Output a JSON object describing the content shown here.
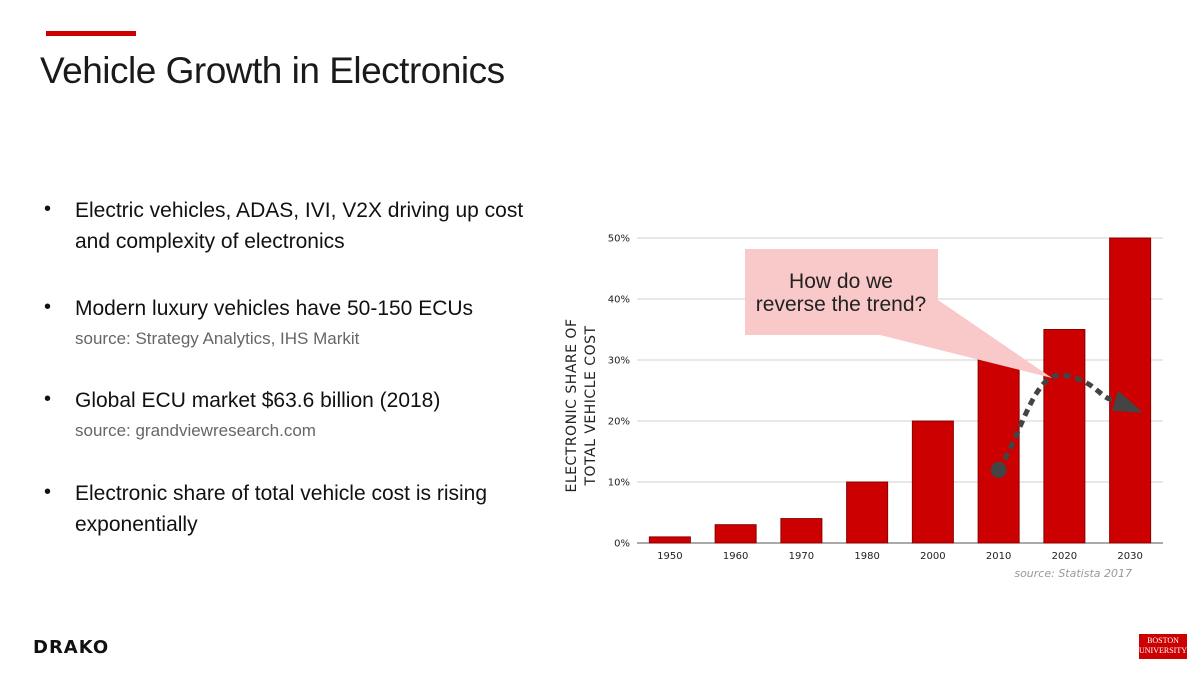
{
  "slide": {
    "title": "Vehicle Growth in Electronics",
    "bullets": [
      {
        "text": "Electric vehicles, ADAS, IVI, V2X driving up cost and complexity of electronics",
        "source": ""
      },
      {
        "text": "Modern luxury vehicles have 50-150 ECUs",
        "source": "source: Strategy Analytics, IHS Markit"
      },
      {
        "text": "Global ECU market $63.6 billion (2018)",
        "source": "source: grandviewresearch.com"
      },
      {
        "text": "Electronic share of total vehicle cost is rising exponentially",
        "source": ""
      }
    ],
    "logos": {
      "left": "DRAKO",
      "right_line1": "BOSTON",
      "right_line2": "UNIVERSITY"
    }
  },
  "chart_data": {
    "type": "bar",
    "categories": [
      "1950",
      "1960",
      "1970",
      "1980",
      "2000",
      "2010",
      "2020",
      "2030"
    ],
    "values": [
      1,
      3,
      4,
      10,
      20,
      30,
      35,
      50
    ],
    "ylabel_line1": "ELECTRONIC SHARE OF",
    "ylabel_line2": "TOTAL VEHICLE COST",
    "ylim": [
      0,
      50
    ],
    "yticks": [
      "0%",
      "10%",
      "20%",
      "30%",
      "40%",
      "50%"
    ],
    "grid": true,
    "bar_color": "#cc0000",
    "annotation": {
      "line1": "How do we",
      "line2": "reverse the trend?"
    },
    "trend_arrow": {
      "points": [
        [
          2010,
          12
        ],
        [
          2020,
          27.5
        ],
        [
          2030,
          22.5
        ]
      ]
    },
    "source": "source: Statista 2017"
  }
}
